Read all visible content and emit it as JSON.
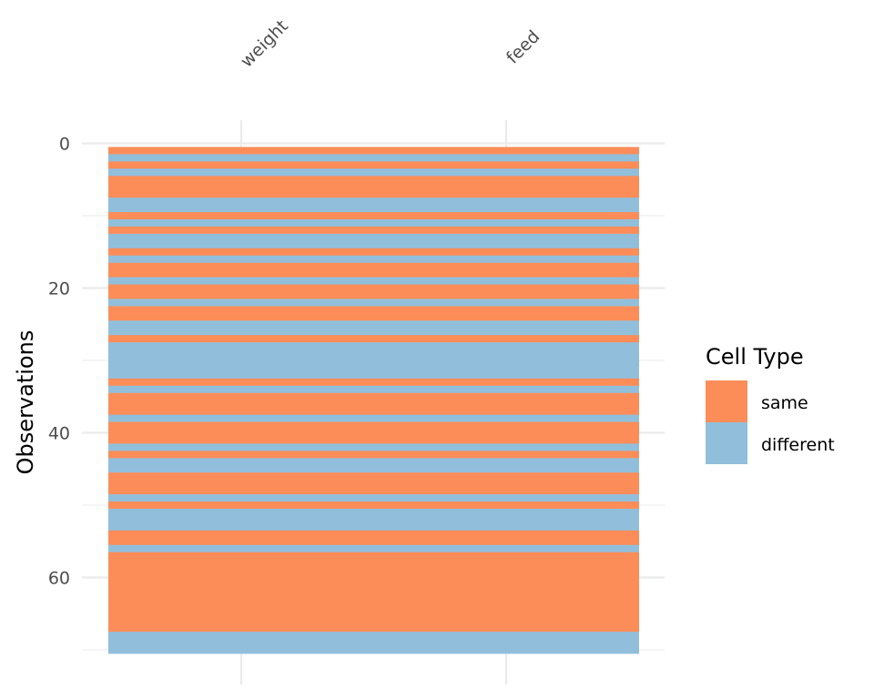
{
  "chart_data": {
    "type": "heatmap",
    "title": "",
    "xlabel": "",
    "ylabel": "Observations",
    "categories": [
      "weight",
      "feed"
    ],
    "y_ticks": [
      0,
      20,
      40,
      60
    ],
    "ylim": [
      0,
      71
    ],
    "legend": {
      "title": "Cell Type",
      "position": "right",
      "entries": [
        {
          "key": "same",
          "label": "same",
          "color": "#FC8D59"
        },
        {
          "key": "different",
          "label": "different",
          "color": "#91BFDB"
        }
      ]
    },
    "rows": [
      "same",
      "different",
      "same",
      "different",
      "same",
      "same",
      "same",
      "different",
      "different",
      "same",
      "different",
      "same",
      "different",
      "different",
      "same",
      "different",
      "same",
      "same",
      "different",
      "same",
      "same",
      "different",
      "same",
      "same",
      "different",
      "different",
      "same",
      "different",
      "different",
      "different",
      "different",
      "different",
      "same",
      "different",
      "same",
      "same",
      "same",
      "different",
      "same",
      "same",
      "same",
      "different",
      "same",
      "different",
      "different",
      "same",
      "same",
      "same",
      "different",
      "same",
      "different",
      "different",
      "different",
      "same",
      "same",
      "different",
      "same",
      "same",
      "same",
      "same",
      "same",
      "same",
      "same",
      "same",
      "same",
      "same",
      "same",
      "different",
      "different",
      "different"
    ]
  }
}
